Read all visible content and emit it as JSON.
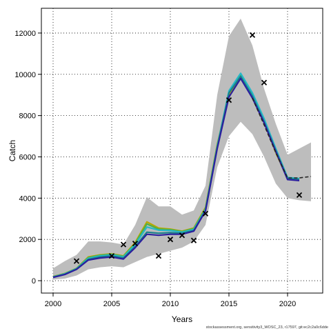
{
  "chart_data": {
    "type": "line",
    "xlabel": "Years",
    "ylabel": "Catch",
    "xlim": [
      1999,
      2023
    ],
    "ylim": [
      -600,
      13200
    ],
    "xticks": [
      2000,
      2005,
      2010,
      2015,
      2020
    ],
    "yticks": [
      0,
      2000,
      4000,
      6000,
      8000,
      10000,
      12000
    ],
    "grid": true,
    "footer": "stockassessment.org, sensitivity3_WOSC_23, r17597, git:ec2c2a0c6dde",
    "band": {
      "x": [
        2000,
        2001,
        2002,
        2003,
        2004,
        2005,
        2006,
        2007,
        2008,
        2009,
        2010,
        2011,
        2012,
        2013,
        2014,
        2015,
        2016,
        2017,
        2018,
        2019,
        2020,
        2021,
        2022
      ],
      "upper": [
        600,
        950,
        1250,
        1900,
        1900,
        1850,
        1750,
        2700,
        4050,
        3600,
        3600,
        3200,
        3400,
        4600,
        9000,
        11850,
        12700,
        11400,
        9300,
        7600,
        6100,
        6400,
        6700
      ],
      "lower": [
        50,
        100,
        250,
        550,
        650,
        700,
        650,
        900,
        1150,
        1300,
        1450,
        1600,
        1900,
        2700,
        5500,
        7000,
        7700,
        7100,
        6000,
        4700,
        4000,
        3900,
        3850
      ]
    },
    "series": [
      {
        "color": "#b8a800",
        "x": [
          2000,
          2001,
          2002,
          2003,
          2004,
          2005,
          2006,
          2007,
          2008,
          2009,
          2010,
          2011,
          2012,
          2013,
          2014,
          2015,
          2016,
          2017,
          2018,
          2019,
          2020
        ],
        "values": [
          200,
          350,
          600,
          1150,
          1250,
          1300,
          1200,
          1850,
          2850,
          2550,
          2500,
          2400,
          2550,
          3550,
          6600,
          9000,
          9850,
          8900,
          7700,
          6200,
          4950
        ]
      },
      {
        "color": "#4db04a",
        "x": [
          2000,
          2001,
          2002,
          2003,
          2004,
          2005,
          2006,
          2007,
          2008,
          2009,
          2010,
          2011,
          2012,
          2013,
          2014,
          2015,
          2016,
          2017,
          2018,
          2019,
          2020
        ],
        "values": [
          190,
          340,
          590,
          1120,
          1230,
          1280,
          1180,
          1800,
          2750,
          2500,
          2470,
          2380,
          2520,
          3500,
          6550,
          9100,
          9950,
          9000,
          7750,
          6250,
          4950
        ]
      },
      {
        "color": "#25b8c8",
        "x": [
          2000,
          2001,
          2002,
          2003,
          2004,
          2005,
          2006,
          2007,
          2008,
          2009,
          2010,
          2011,
          2012,
          2013,
          2014,
          2015,
          2016,
          2017,
          2018,
          2019,
          2020,
          2021
        ],
        "values": [
          180,
          330,
          580,
          1080,
          1200,
          1250,
          1150,
          1750,
          2600,
          2450,
          2430,
          2350,
          2480,
          3450,
          6500,
          9200,
          10050,
          9100,
          7850,
          6400,
          5000,
          4950
        ]
      },
      {
        "color": "#1a7f8a",
        "x": [
          2000,
          2001,
          2002,
          2003,
          2004,
          2005,
          2006,
          2007,
          2008,
          2009,
          2010,
          2011,
          2012,
          2013,
          2014,
          2015,
          2016,
          2017,
          2018,
          2019,
          2020,
          2021
        ],
        "values": [
          170,
          310,
          560,
          1030,
          1150,
          1200,
          1100,
          1650,
          2350,
          2300,
          2330,
          2300,
          2430,
          3400,
          6450,
          9100,
          9900,
          8950,
          7700,
          6300,
          4950,
          4900
        ]
      },
      {
        "color": "#2b1f9e",
        "x": [
          2000,
          2001,
          2002,
          2003,
          2004,
          2005,
          2006,
          2007,
          2008,
          2009,
          2010,
          2011,
          2012,
          2013,
          2014,
          2015,
          2016,
          2017,
          2018,
          2019,
          2020,
          2021
        ],
        "values": [
          160,
          300,
          550,
          1000,
          1100,
          1150,
          1050,
          1600,
          2250,
          2200,
          2250,
          2250,
          2400,
          3380,
          6400,
          8900,
          9800,
          8850,
          7650,
          6250,
          4900,
          4850
        ]
      },
      {
        "color": "#222222",
        "dashed": true,
        "x": [
          2017,
          2018,
          2019,
          2020,
          2021,
          2022
        ],
        "values": [
          8850,
          7550,
          6200,
          4980,
          4980,
          5050
        ]
      }
    ],
    "observed": {
      "x": [
        2002,
        2005,
        2006,
        2007,
        2009,
        2010,
        2011,
        2012,
        2013,
        2015,
        2017,
        2018,
        2021
      ],
      "values": [
        950,
        1200,
        1750,
        1800,
        1200,
        2000,
        2200,
        1950,
        3250,
        8750,
        11900,
        9600,
        4150
      ]
    }
  }
}
